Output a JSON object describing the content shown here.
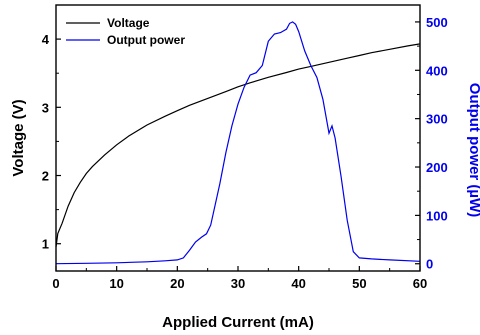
{
  "chart_data": {
    "type": "line",
    "xlabel": "Applied Current (mA)",
    "ylabel_left": "Voltage (V)",
    "ylabel_right": "Output power (µW)",
    "xlim": [
      0,
      60
    ],
    "ylim_left": [
      0.6,
      4.5
    ],
    "ylim_right": [
      -15,
      535
    ],
    "xticks": [
      "0",
      "10",
      "20",
      "30",
      "40",
      "50",
      "60"
    ],
    "yticks_left": [
      "1",
      "2",
      "3",
      "4"
    ],
    "yticks_right": [
      "0",
      "100",
      "200",
      "300",
      "400",
      "500"
    ],
    "grid": false,
    "legend_position": "top-left",
    "colors": {
      "voltage": "#000000",
      "power": "#0000ee",
      "right_axis": "#0000ee"
    },
    "series": [
      {
        "name": "Voltage",
        "axis": "left",
        "x": [
          0,
          0.3,
          1,
          2,
          3,
          4,
          5,
          6,
          8,
          10,
          12,
          15,
          18,
          20,
          22,
          25,
          28,
          30,
          32,
          35,
          38,
          40,
          42,
          45,
          48,
          50,
          52,
          55,
          58,
          60
        ],
        "y": [
          0.95,
          1.15,
          1.3,
          1.55,
          1.75,
          1.9,
          2.03,
          2.13,
          2.3,
          2.45,
          2.58,
          2.74,
          2.87,
          2.95,
          3.03,
          3.13,
          3.23,
          3.3,
          3.36,
          3.44,
          3.51,
          3.56,
          3.6,
          3.66,
          3.72,
          3.76,
          3.8,
          3.85,
          3.9,
          3.93
        ]
      },
      {
        "name": "Output power",
        "axis": "right",
        "x": [
          0,
          5,
          10,
          15,
          18,
          20,
          21,
          22,
          23,
          24,
          24.8,
          25.5,
          27,
          28,
          29,
          30,
          31,
          32,
          33,
          34,
          35,
          36,
          37,
          38,
          38.5,
          39,
          39.5,
          40,
          41,
          42,
          43,
          44,
          45,
          45.5,
          46,
          47,
          48,
          49,
          50,
          52,
          55,
          60
        ],
        "y": [
          0,
          1,
          2,
          4,
          6,
          8,
          12,
          28,
          45,
          55,
          62,
          80,
          165,
          230,
          285,
          330,
          365,
          390,
          395,
          410,
          460,
          475,
          478,
          485,
          497,
          500,
          495,
          480,
          440,
          410,
          385,
          340,
          270,
          285,
          260,
          180,
          90,
          25,
          12,
          10,
          8,
          5
        ]
      }
    ]
  }
}
